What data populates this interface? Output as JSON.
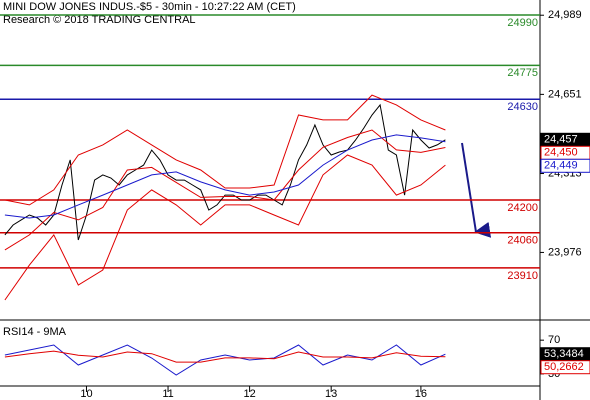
{
  "chart_data": [
    {
      "type": "line",
      "title": "MINI DOW JONES INDUS.-$5 - 30min - 10:27:22 AM (CET)",
      "subtitle": "Research © 2018 TRADING CENTRAL",
      "x": [
        0,
        1,
        2,
        3,
        4,
        5,
        6,
        7,
        8,
        9,
        10,
        11,
        12,
        13,
        14,
        15,
        16,
        17,
        18,
        19,
        20,
        21,
        22,
        23,
        24,
        25,
        26,
        27,
        28,
        29,
        30,
        31,
        32,
        33,
        34,
        35,
        36,
        37,
        38,
        39,
        40,
        41,
        42,
        43,
        44,
        45,
        46,
        47,
        48,
        49,
        50,
        51,
        52,
        53,
        54
      ],
      "xlim": [
        -0.6,
        65.6
      ],
      "xticks": [
        {
          "value": 10,
          "label": "10"
        },
        {
          "value": 20,
          "label": "11"
        },
        {
          "value": 30,
          "label": "12"
        },
        {
          "value": 40,
          "label": "13"
        },
        {
          "value": 51,
          "label": "16"
        }
      ],
      "ylim": [
        23696,
        25054
      ],
      "yticks": [
        {
          "value": 24989,
          "label": "24,989"
        },
        {
          "value": 24651,
          "label": "24,651"
        },
        {
          "value": 24313,
          "label": "24,313"
        },
        {
          "value": 23976,
          "label": "23,976"
        }
      ],
      "series": [
        {
          "color": "#000000",
          "values": [
            24051,
            24093,
            24115,
            24136,
            24123,
            24093,
            24136,
            24264,
            24371,
            24029,
            24136,
            24285,
            24307,
            24294,
            24264,
            24307,
            24328,
            24349,
            24413,
            24371,
            24307,
            24285,
            24285,
            24264,
            24243,
            24157,
            24179,
            24221,
            24221,
            24200,
            24200,
            24221,
            24221,
            24200,
            24179,
            24264,
            24371,
            24435,
            24520,
            24435,
            24392,
            24405,
            24413,
            24456,
            24507,
            24563,
            24606,
            24413,
            24392,
            24221,
            24499,
            24456,
            24422,
            24435,
            24457
          ]
        },
        {
          "color": "#e00000",
          "x": [
            0,
            3,
            6,
            9,
            12,
            15,
            18,
            21,
            24,
            27,
            30,
            33,
            36,
            39,
            42,
            45,
            48,
            51,
            54
          ],
          "values": [
            24200,
            24179,
            24243,
            24392,
            24435,
            24499,
            24435,
            24371,
            24328,
            24251,
            24251,
            24264,
            24563,
            24542,
            24542,
            24648,
            24606,
            24542,
            24499
          ]
        },
        {
          "color": "#e00000",
          "x": [
            0,
            3,
            6,
            9,
            12,
            15,
            18,
            21,
            24,
            27,
            30,
            33,
            36,
            39,
            42,
            45,
            48,
            51,
            54
          ],
          "values": [
            23773,
            23922,
            24051,
            23837,
            23901,
            24157,
            24243,
            24179,
            24093,
            24179,
            24179,
            24136,
            24093,
            24307,
            24392,
            24349,
            24221,
            24264,
            24349
          ]
        },
        {
          "color": "#e00000",
          "x": [
            0,
            3,
            6,
            9,
            12,
            15,
            18,
            21,
            24,
            27,
            30,
            33,
            36,
            39,
            42,
            45,
            48,
            51,
            54
          ],
          "values": [
            23987,
            24051,
            24147,
            24115,
            24168,
            24328,
            24339,
            24275,
            24211,
            24215,
            24215,
            24200,
            24328,
            24425,
            24467,
            24499,
            24414,
            24403,
            24424
          ]
        },
        {
          "color": "#1a1acc",
          "x": [
            0,
            3,
            6,
            9,
            12,
            15,
            18,
            21,
            24,
            27,
            30,
            33,
            36,
            39,
            42,
            45,
            48,
            51,
            54
          ],
          "values": [
            24136,
            24123,
            24136,
            24179,
            24221,
            24264,
            24307,
            24320,
            24277,
            24243,
            24221,
            24234,
            24264,
            24349,
            24413,
            24456,
            24478,
            24465,
            24449
          ]
        }
      ],
      "levels": [
        {
          "value": 24990,
          "color": "#2a8a2a"
        },
        {
          "value": 24775,
          "color": "#2a8a2a"
        },
        {
          "value": 24630,
          "color": "#1a1aaa"
        },
        {
          "value": 24200,
          "color": "#d00000"
        },
        {
          "value": 24060,
          "color": "#d00000"
        },
        {
          "value": 23910,
          "color": "#d00000"
        }
      ],
      "price_labels": [
        {
          "value": 24457,
          "label": "24,457",
          "color": "#000000"
        },
        {
          "value": 24450,
          "label": "24,450",
          "color": "#e00000"
        },
        {
          "value": 24449,
          "label": "24,449",
          "color": "#1a1acc"
        }
      ]
    },
    {
      "type": "line",
      "title": "RSI14 - 9MA",
      "ylim": [
        18,
        88
      ],
      "yticks": [
        70,
        30
      ],
      "xlim": [
        -0.6,
        65.6
      ],
      "series": [
        {
          "color": "#1a1acc",
          "x": [
            0,
            3,
            6,
            9,
            12,
            15,
            18,
            21,
            24,
            27,
            30,
            33,
            36,
            39,
            42,
            45,
            48,
            51,
            54
          ],
          "values": [
            52.4,
            58.3,
            64.3,
            40.6,
            52.4,
            64.3,
            48.9,
            28.7,
            46.5,
            52.4,
            46.5,
            48.9,
            64.3,
            40.6,
            52.4,
            46.5,
            64.3,
            40.6,
            53.3
          ]
        },
        {
          "color": "#e00000",
          "x": [
            0,
            3,
            6,
            9,
            12,
            15,
            18,
            21,
            24,
            27,
            30,
            33,
            36,
            39,
            42,
            45,
            48,
            51,
            54
          ],
          "values": [
            50,
            54,
            57,
            52,
            50,
            56,
            54,
            44,
            44,
            49,
            49,
            48,
            56,
            50,
            50,
            49,
            55,
            51,
            50.3
          ]
        }
      ],
      "price_labels": [
        {
          "value": 53.3484,
          "label": "53,3484",
          "color": "#000000"
        },
        {
          "value": 50.2662,
          "label": "50,2662",
          "color": "#e00000"
        }
      ]
    }
  ]
}
